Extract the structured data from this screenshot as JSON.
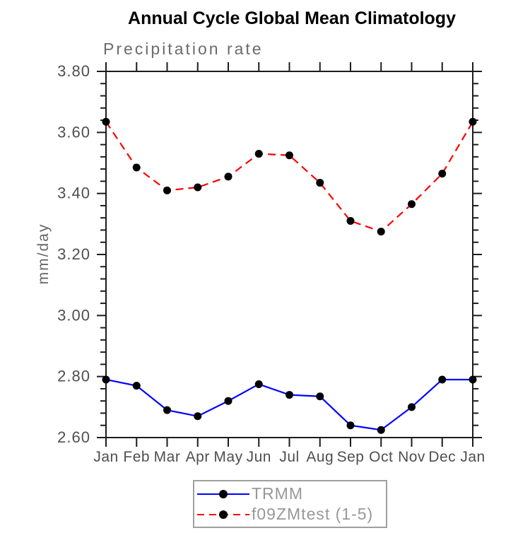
{
  "title": "Annual Cycle Global Mean Climatology",
  "subtitle": "Precipitation rate",
  "y_axis_label": "mm/day",
  "legend": {
    "entries": [
      {
        "label": "TRMM",
        "color": "#0000ff",
        "line_style": "solid",
        "marker": "filled-circle",
        "marker_color": "#000000"
      },
      {
        "label": "f09ZMtest (1-5)",
        "color": "#ff0000",
        "line_style": "dashed",
        "marker": "filled-circle",
        "marker_color": "#000000"
      }
    ],
    "position": "bottom-center"
  },
  "chart_data": {
    "type": "line",
    "title": "Annual Cycle Global Mean Climatology",
    "subtitle": "Precipitation rate",
    "ylabel": "mm/day",
    "xlabel": "",
    "categories": [
      "Jan",
      "Feb",
      "Mar",
      "Apr",
      "May",
      "Jun",
      "Jul",
      "Aug",
      "Sep",
      "Oct",
      "Nov",
      "Dec",
      "Jan"
    ],
    "series": [
      {
        "name": "TRMM",
        "color": "#0000ff",
        "line_style": "solid",
        "marker": "circle",
        "marker_color": "#000000",
        "values": [
          2.79,
          2.77,
          2.69,
          2.67,
          2.72,
          2.775,
          2.74,
          2.735,
          2.64,
          2.625,
          2.7,
          2.79,
          2.79
        ]
      },
      {
        "name": "f09ZMtest (1-5)",
        "color": "#ff0000",
        "line_style": "dashed",
        "marker": "circle",
        "marker_color": "#000000",
        "values": [
          3.635,
          3.485,
          3.41,
          3.42,
          3.455,
          3.53,
          3.525,
          3.435,
          3.31,
          3.275,
          3.365,
          3.465,
          3.635
        ]
      }
    ],
    "ylim": [
      2.6,
      3.8
    ],
    "ytick_step": 0.2,
    "ytick_labels": [
      "2.60",
      "2.80",
      "3.00",
      "3.20",
      "3.40",
      "3.60",
      "3.80"
    ],
    "yminor_step": 0.04,
    "grid": false,
    "legend_position": "bottom-center",
    "axis_color": "#1c1c1c",
    "tick_label_color": "#4f4f4f"
  }
}
